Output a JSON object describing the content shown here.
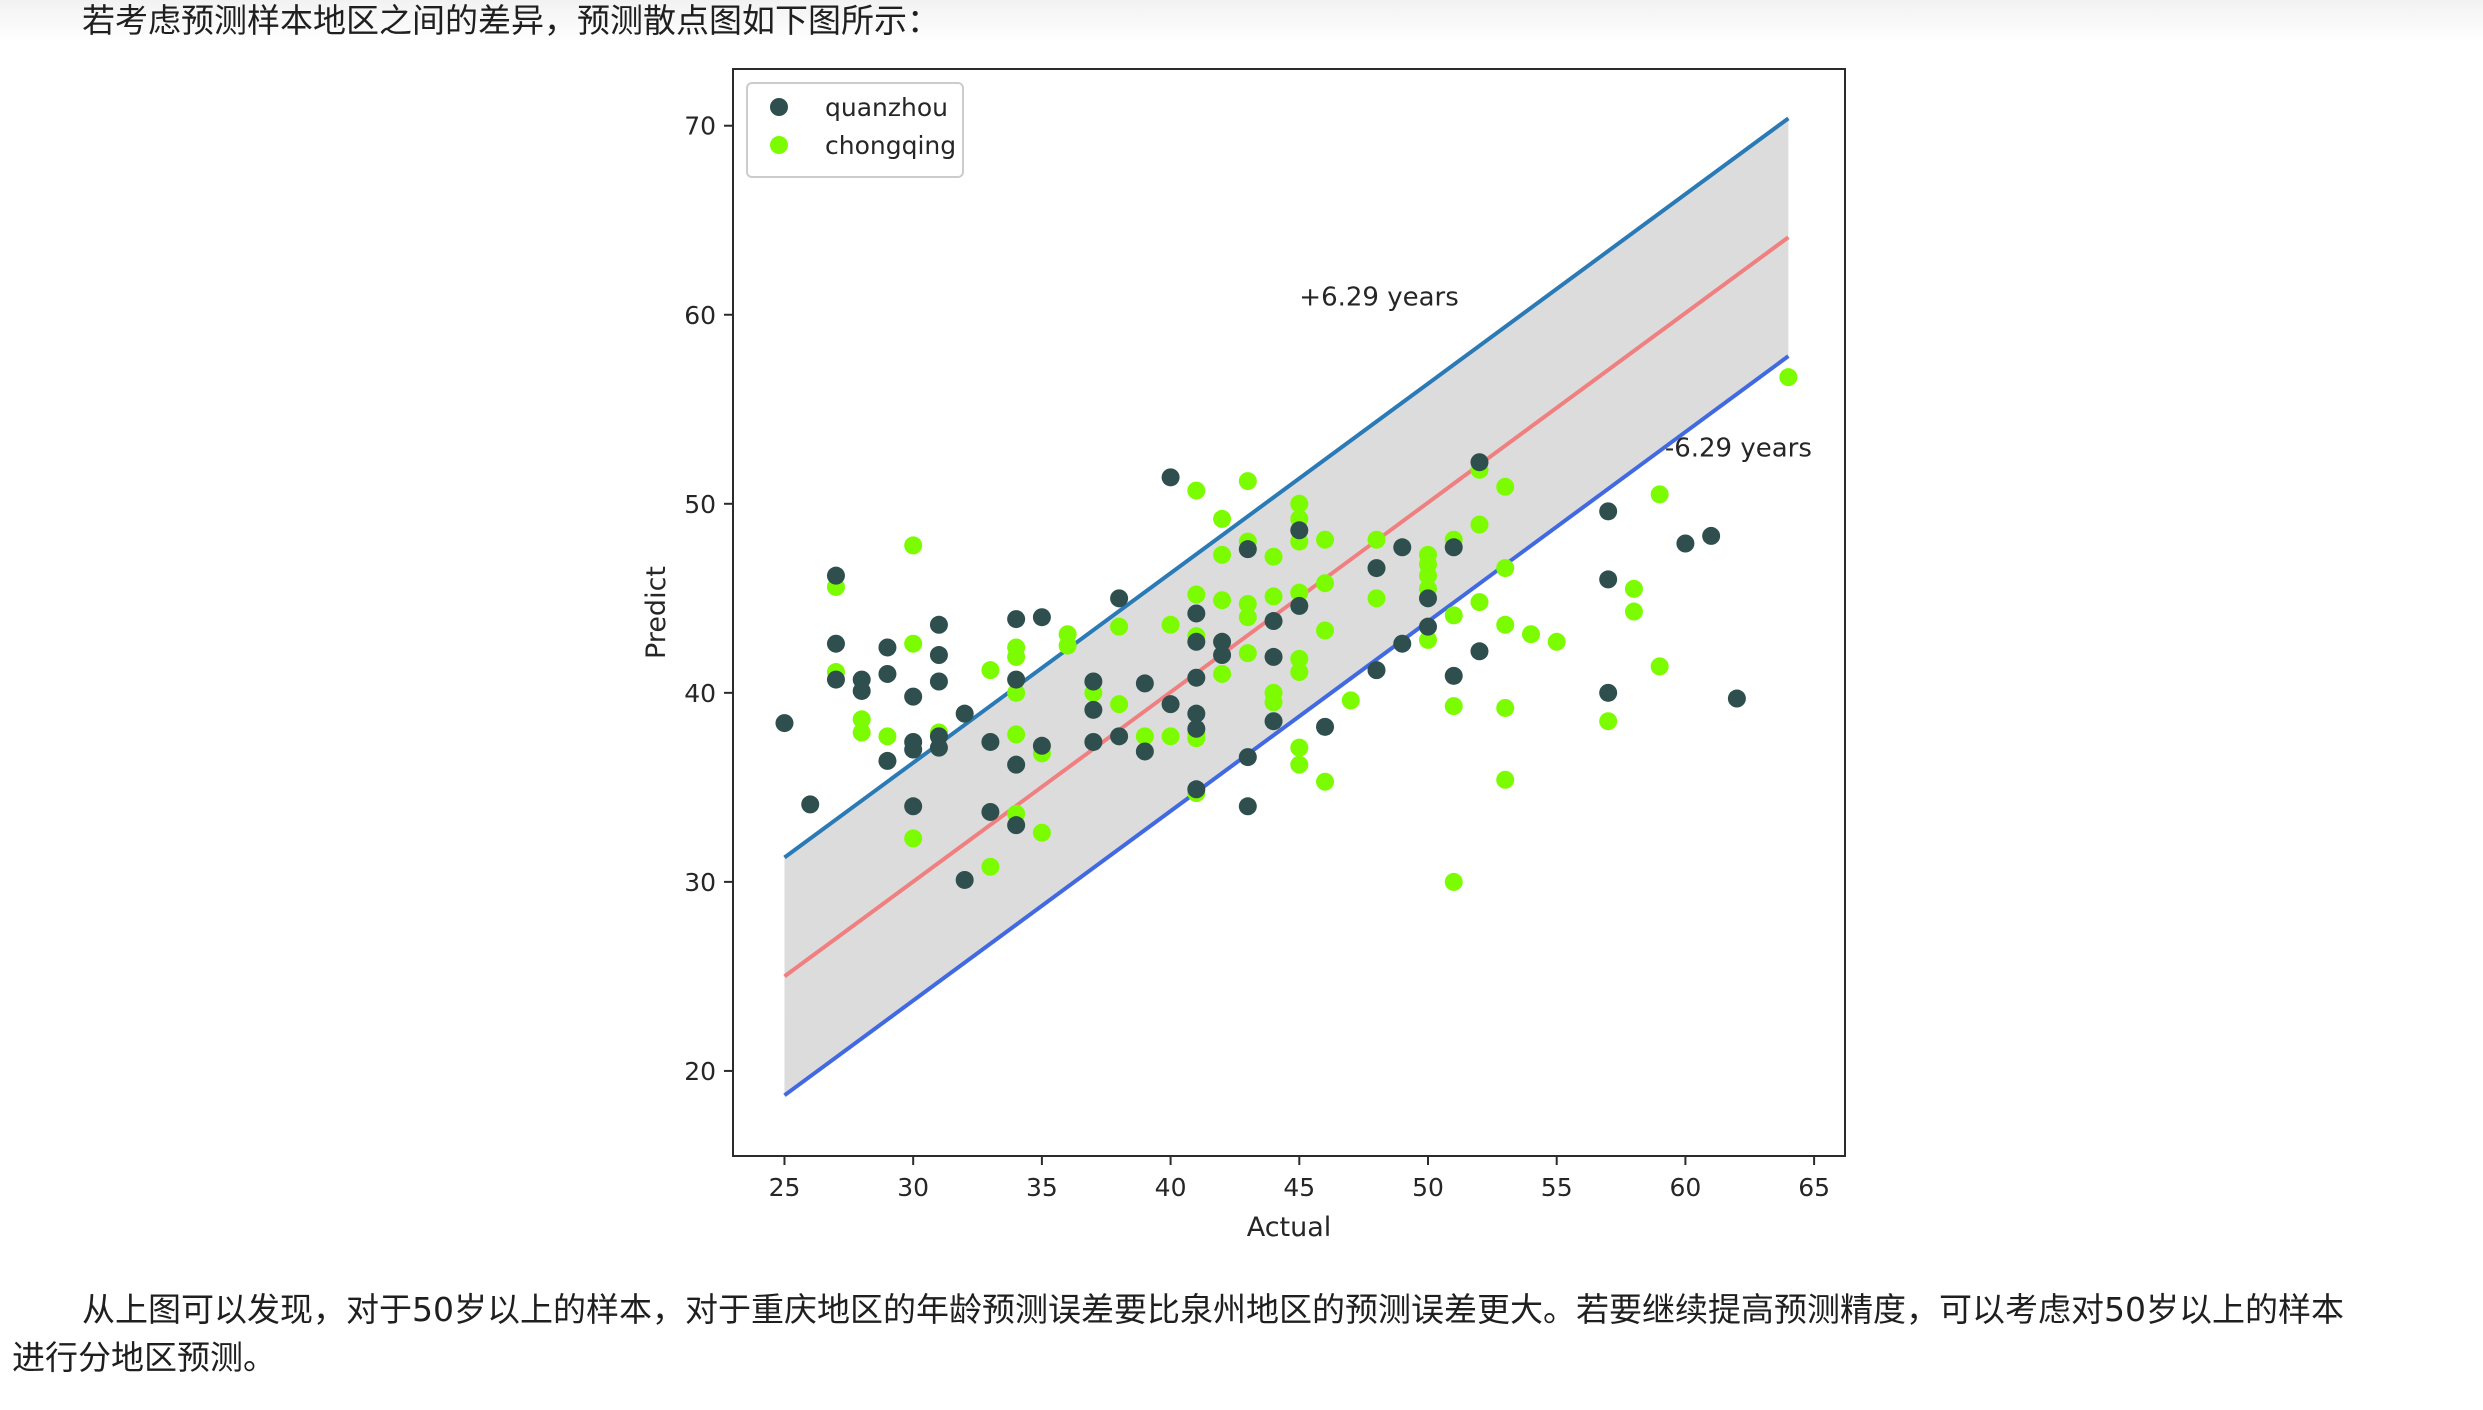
{
  "text": {
    "intro": "若考虑预测样本地区之间的差异，预测散点图如下图所示：",
    "conclusion_line1": "从上图可以发现，对于50岁以上的样本，对于重庆地区的年龄预测误差要比泉州地区的预测误差更大。若要继续提高预测精度，可以考虑对50岁以上的样本",
    "conclusion_line2": "进行分地区预测。"
  },
  "chart_data": {
    "type": "scatter",
    "title": "",
    "xlabel": "Actual",
    "ylabel": "Predict",
    "xlim": [
      23,
      66.2
    ],
    "ylim": [
      15.5,
      73
    ],
    "xticks": [
      25,
      30,
      35,
      40,
      45,
      50,
      55,
      60,
      65
    ],
    "yticks": [
      20,
      30,
      40,
      50,
      60,
      70
    ],
    "grid": false,
    "legend_position": "top-left",
    "colors": {
      "quanzhou": "#2f4f4f",
      "chongqing": "#7cfc00",
      "upper_line": "#2a7ab5",
      "center_line": "#f08080",
      "lower_line": "#4169e1",
      "band_fill": "#dcdcdc"
    },
    "reference_lines": {
      "x_range": [
        25,
        64
      ],
      "center": [
        [
          25,
          25.0
        ],
        [
          64,
          64.1
        ]
      ],
      "upper_offset": 6.29,
      "lower_offset": -6.29
    },
    "annotations": [
      {
        "text": "+6.29 years",
        "x": 45,
        "y": 60.5
      },
      {
        "text": "-6.29 years",
        "x": 59.2,
        "y": 52.5
      }
    ],
    "series": [
      {
        "name": "quanzhou",
        "points": [
          [
            25,
            38.4
          ],
          [
            26,
            34.1
          ],
          [
            27,
            46.2
          ],
          [
            27,
            42.6
          ],
          [
            27,
            40.7
          ],
          [
            28,
            40.1
          ],
          [
            28,
            40.7
          ],
          [
            29,
            42.4
          ],
          [
            29,
            41.0
          ],
          [
            29,
            36.4
          ],
          [
            30,
            39.8
          ],
          [
            30,
            37.4
          ],
          [
            30,
            37.0
          ],
          [
            30,
            34.0
          ],
          [
            31,
            43.6
          ],
          [
            31,
            42.0
          ],
          [
            31,
            40.6
          ],
          [
            31,
            37.7
          ],
          [
            31,
            37.1
          ],
          [
            32,
            38.9
          ],
          [
            32,
            30.1
          ],
          [
            33,
            37.4
          ],
          [
            33,
            33.7
          ],
          [
            34,
            43.9
          ],
          [
            34,
            40.7
          ],
          [
            34,
            36.2
          ],
          [
            34,
            33.0
          ],
          [
            35,
            44.0
          ],
          [
            35,
            37.2
          ],
          [
            37,
            40.6
          ],
          [
            37,
            39.1
          ],
          [
            37,
            37.4
          ],
          [
            38,
            45.0
          ],
          [
            38,
            37.7
          ],
          [
            39,
            40.5
          ],
          [
            39,
            36.9
          ],
          [
            40,
            51.4
          ],
          [
            40,
            39.4
          ],
          [
            41,
            44.2
          ],
          [
            41,
            42.7
          ],
          [
            41,
            40.8
          ],
          [
            41,
            38.9
          ],
          [
            41,
            38.1
          ],
          [
            41,
            34.9
          ],
          [
            42,
            42.7
          ],
          [
            42,
            42.0
          ],
          [
            43,
            47.6
          ],
          [
            43,
            36.6
          ],
          [
            43,
            34.0
          ],
          [
            44,
            43.8
          ],
          [
            44,
            41.9
          ],
          [
            44,
            38.5
          ],
          [
            45,
            48.6
          ],
          [
            45,
            44.6
          ],
          [
            46,
            38.2
          ],
          [
            48,
            46.6
          ],
          [
            48,
            41.2
          ],
          [
            49,
            47.7
          ],
          [
            49,
            42.6
          ],
          [
            50,
            45.0
          ],
          [
            50,
            43.5
          ],
          [
            51,
            47.7
          ],
          [
            51,
            40.9
          ],
          [
            52,
            52.2
          ],
          [
            52,
            42.2
          ],
          [
            57,
            49.6
          ],
          [
            57,
            46.0
          ],
          [
            57,
            40.0
          ],
          [
            60,
            47.9
          ],
          [
            61,
            48.3
          ],
          [
            62,
            39.7
          ]
        ]
      },
      {
        "name": "chongqing",
        "points": [
          [
            27,
            45.6
          ],
          [
            27,
            41.1
          ],
          [
            28,
            38.6
          ],
          [
            28,
            37.9
          ],
          [
            29,
            37.7
          ],
          [
            30,
            47.8
          ],
          [
            30,
            42.6
          ],
          [
            30,
            32.3
          ],
          [
            31,
            37.9
          ],
          [
            33,
            41.2
          ],
          [
            33,
            30.8
          ],
          [
            34,
            42.4
          ],
          [
            34,
            41.9
          ],
          [
            34,
            40.0
          ],
          [
            34,
            37.8
          ],
          [
            34,
            33.6
          ],
          [
            35,
            36.8
          ],
          [
            35,
            32.6
          ],
          [
            36,
            43.1
          ],
          [
            36,
            42.5
          ],
          [
            37,
            40.0
          ],
          [
            38,
            43.5
          ],
          [
            38,
            39.4
          ],
          [
            39,
            37.7
          ],
          [
            40,
            43.6
          ],
          [
            40,
            37.7
          ],
          [
            41,
            50.7
          ],
          [
            41,
            45.2
          ],
          [
            41,
            43.0
          ],
          [
            41,
            37.9
          ],
          [
            41,
            37.6
          ],
          [
            41,
            34.7
          ],
          [
            42,
            49.2
          ],
          [
            42,
            47.3
          ],
          [
            42,
            44.9
          ],
          [
            42,
            41.0
          ],
          [
            43,
            51.2
          ],
          [
            43,
            48.0
          ],
          [
            43,
            44.7
          ],
          [
            43,
            44.0
          ],
          [
            43,
            42.1
          ],
          [
            44,
            47.2
          ],
          [
            44,
            45.1
          ],
          [
            44,
            40.0
          ],
          [
            44,
            39.5
          ],
          [
            45,
            50.0
          ],
          [
            45,
            49.2
          ],
          [
            45,
            48.0
          ],
          [
            45,
            45.3
          ],
          [
            45,
            41.8
          ],
          [
            45,
            41.1
          ],
          [
            45,
            37.1
          ],
          [
            45,
            36.2
          ],
          [
            46,
            48.1
          ],
          [
            46,
            45.8
          ],
          [
            46,
            43.3
          ],
          [
            46,
            35.3
          ],
          [
            47,
            39.6
          ],
          [
            48,
            48.1
          ],
          [
            48,
            45.0
          ],
          [
            50,
            47.3
          ],
          [
            50,
            46.8
          ],
          [
            50,
            46.2
          ],
          [
            50,
            45.5
          ],
          [
            50,
            42.8
          ],
          [
            51,
            48.1
          ],
          [
            51,
            44.1
          ],
          [
            51,
            39.3
          ],
          [
            51,
            30.0
          ],
          [
            52,
            51.8
          ],
          [
            52,
            48.9
          ],
          [
            52,
            44.8
          ],
          [
            53,
            50.9
          ],
          [
            53,
            46.6
          ],
          [
            53,
            43.6
          ],
          [
            53,
            39.2
          ],
          [
            53,
            35.4
          ],
          [
            54,
            43.1
          ],
          [
            55,
            42.7
          ],
          [
            57,
            38.5
          ],
          [
            58,
            45.5
          ],
          [
            58,
            44.3
          ],
          [
            59,
            50.5
          ],
          [
            59,
            41.4
          ],
          [
            64,
            56.7
          ]
        ]
      }
    ]
  }
}
